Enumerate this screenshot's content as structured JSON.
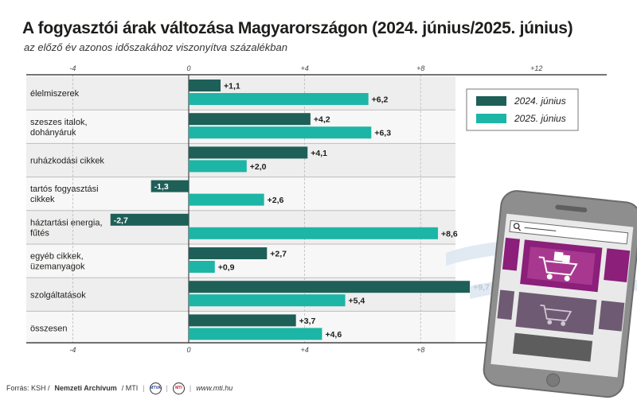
{
  "title": "A fogyasztói árak változása Magyarországon (2024. június/2025. június)",
  "subtitle": "az előző év azonos időszakához viszonyítva százalékban",
  "chart_data": {
    "type": "bar",
    "orientation": "horizontal",
    "categories": [
      [
        "élelmiszerek"
      ],
      [
        "szeszes italok,",
        "dohányáruk"
      ],
      [
        "ruházkodási cikkek"
      ],
      [
        "tartós fogyasztási",
        "cikkek"
      ],
      [
        "háztartási energia,",
        "fűtés"
      ],
      [
        "egyéb cikkek,",
        "üzemanyagok"
      ],
      [
        "szolgáltatások"
      ],
      [
        "összesen"
      ]
    ],
    "series": [
      {
        "name": "2024. június",
        "color": "#1e5f58",
        "values": [
          1.1,
          4.2,
          4.1,
          -1.3,
          -2.7,
          2.7,
          9.7,
          3.7
        ],
        "labels": [
          "+1,1",
          "+4,2",
          "+4,1",
          "-1,3",
          "-2,7",
          "+2,7",
          "+9,7",
          "+3,7"
        ]
      },
      {
        "name": "2025. június",
        "color": "#1db5a5",
        "values": [
          6.2,
          6.3,
          2.0,
          2.6,
          8.6,
          0.9,
          5.4,
          4.6
        ],
        "labels": [
          "+6,2",
          "+6,3",
          "+2,0",
          "+2,6",
          "+8,6",
          "+0,9",
          "+5,4",
          "+4,6"
        ]
      }
    ],
    "xlim": [
      -4,
      12
    ],
    "top_ticks": [
      "-4",
      "0",
      "+4",
      "+8",
      "+12"
    ],
    "bottom_ticks": [
      "-4",
      "0",
      "+4",
      "+8"
    ],
    "legend_position": "top-right"
  },
  "footer": {
    "source_label": "Forrás: KSH /",
    "source_bold": "Nemzeti Archívum",
    "source_end": "/ MTI",
    "logo1": "MTVA",
    "logo2": "MTI",
    "url": "www.mti.hu"
  },
  "colors": {
    "series1": "#1e5f58",
    "series2": "#1db5a5",
    "row_shade": "#eeeeee",
    "phone_body": "#8b8b8b",
    "phone_accent": "#8b1f7a"
  },
  "illustration": "smartphone-with-shopping-cart-icon"
}
